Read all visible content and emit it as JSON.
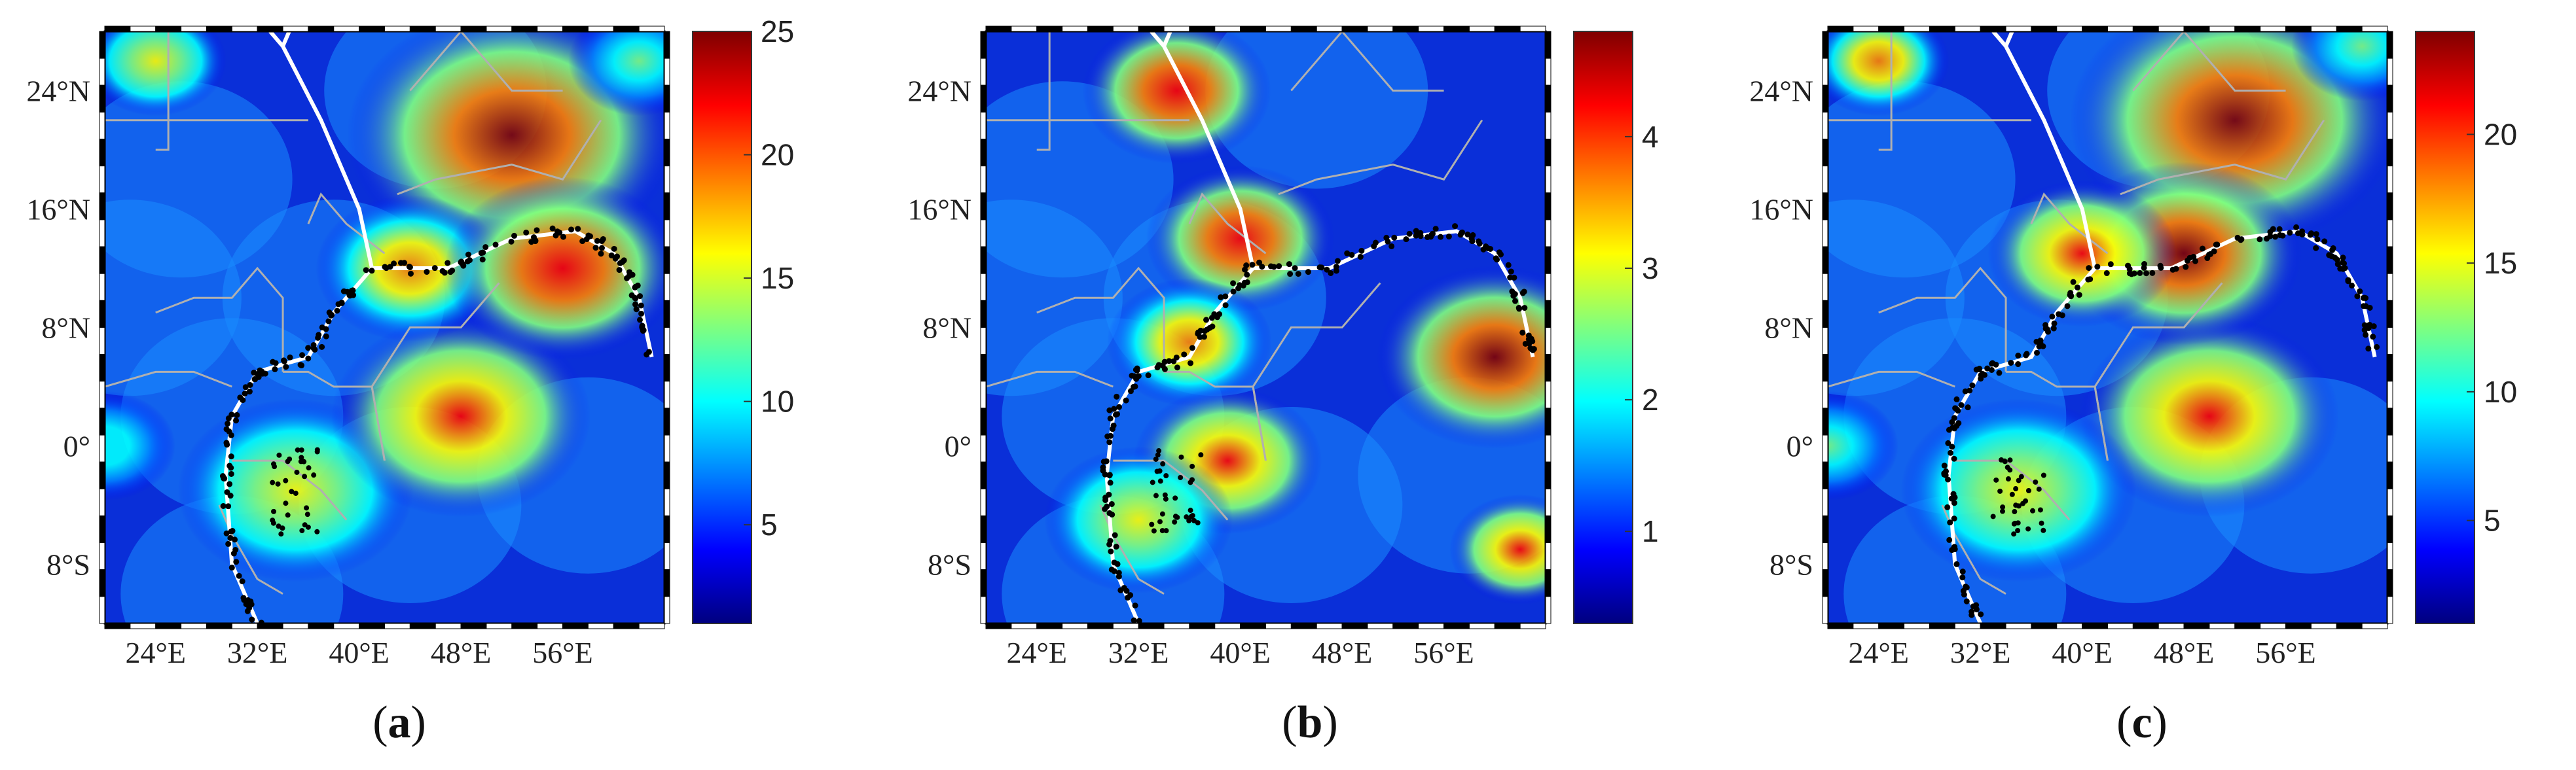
{
  "panels": [
    {
      "caption_open": "(",
      "caption_letter": "a",
      "caption_close": ")",
      "colorbar_ticks": [
        "25",
        "20",
        "15",
        "10",
        "5"
      ],
      "colorbar_values": [
        25,
        20,
        15,
        10,
        5
      ],
      "colorbar_range": [
        1,
        25
      ]
    },
    {
      "caption_open": "(",
      "caption_letter": "b",
      "caption_close": ")",
      "colorbar_ticks": [
        "4",
        "3",
        "2",
        "1"
      ],
      "colorbar_values": [
        4,
        3,
        2,
        1
      ],
      "colorbar_range": [
        0.3,
        4.8
      ]
    },
    {
      "caption_open": "(",
      "caption_letter": "c",
      "caption_close": ")",
      "colorbar_ticks": [
        "20",
        "15",
        "10",
        "5"
      ],
      "colorbar_values": [
        20,
        15,
        10,
        5
      ],
      "colorbar_range": [
        1,
        24
      ]
    }
  ],
  "map": {
    "lon_range": [
      20,
      64
    ],
    "lat_range": [
      -12,
      28
    ],
    "lon_ticks": [
      24,
      32,
      40,
      48,
      56
    ],
    "lon_tick_labels": [
      "24°E",
      "32°E",
      "40°E",
      "48°E",
      "56°E"
    ],
    "lat_ticks": [
      24,
      16,
      8,
      0,
      -8
    ],
    "lat_tick_labels": [
      "24°N",
      "16°N",
      "8°N",
      "0°",
      "8°S"
    ]
  },
  "colors": {
    "colormap": [
      "#00007f",
      "#0000ff",
      "#007fff",
      "#00ffff",
      "#7fff7f",
      "#ffff00",
      "#ff7f00",
      "#ff0000",
      "#7f0000"
    ],
    "plate_boundary": "#ffffff",
    "country_border": "#b0b0b0",
    "events": "#000000"
  }
}
